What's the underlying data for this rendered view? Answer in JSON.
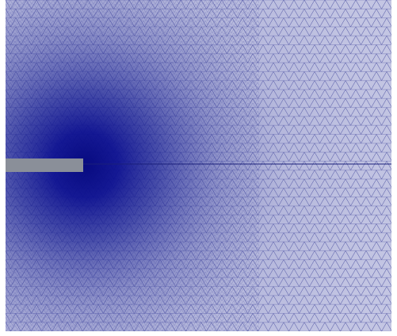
{
  "figure": {
    "kind": "finite-element triangular mesh with refinement near a slit / notch",
    "colors": {
      "mesh_fill": "#c6c8e4",
      "mesh_edge": "#2a2f8f",
      "dense_core": "#0a0d82",
      "slit": "#8a8f99",
      "crack_line": "#1a1f7a",
      "background": "#ffffff"
    }
  }
}
